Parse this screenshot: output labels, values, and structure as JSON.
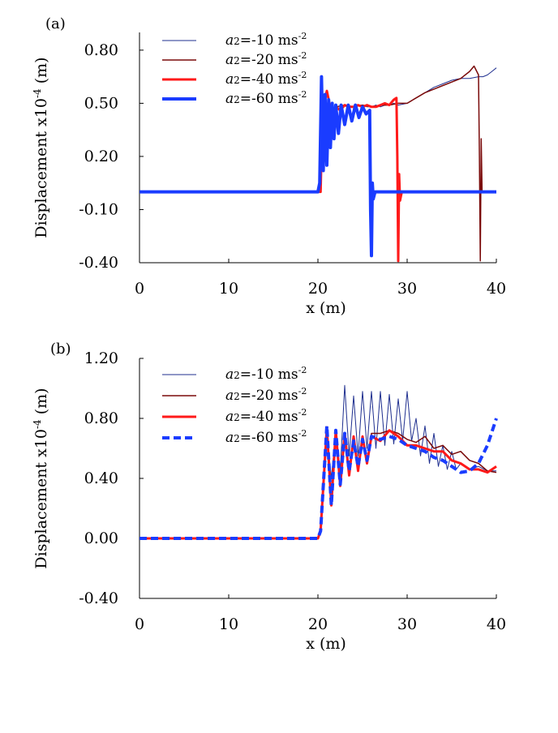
{
  "chart_data": [
    {
      "type": "line",
      "panel_label": "(a)",
      "xlabel": "x (m)",
      "ylabel": "Displacement x10",
      "ylabel_exponent": "-4",
      "ylabel_unit": " (m)",
      "xlim": [
        0,
        40
      ],
      "ylim": [
        -0.4,
        0.9
      ],
      "xticks": [
        0,
        10,
        20,
        30,
        40
      ],
      "xtick_labels": [
        "0",
        "10",
        "20",
        "30",
        "40"
      ],
      "yticks": [
        -0.4,
        -0.1,
        0.2,
        0.5,
        0.8
      ],
      "ytick_labels": [
        "-0.40",
        "-0.10",
        "0.20",
        "0.50",
        "0.80"
      ],
      "grid": false,
      "legend_position": "top-center",
      "series": [
        {
          "legend_var": "a",
          "legend_sub": "2",
          "legend_val": "=-10 ms",
          "legend_exp": "-2",
          "color": "#1f2f8f",
          "width": 1,
          "x": [
            0,
            20.3,
            20.5,
            21.0,
            21.5,
            22,
            22.5,
            23,
            23.5,
            24,
            24.5,
            25,
            25.5,
            26,
            26.5,
            27,
            27.5,
            28,
            28.5,
            29,
            30,
            31,
            32,
            33,
            34,
            35,
            36,
            37,
            38,
            38.5,
            39,
            39.5,
            40
          ],
          "y": [
            0.0,
            0.0,
            0.45,
            0.57,
            0.46,
            0.48,
            0.47,
            0.49,
            0.48,
            0.48,
            0.49,
            0.49,
            0.48,
            0.48,
            0.49,
            0.48,
            0.49,
            0.49,
            0.5,
            0.49,
            0.5,
            0.53,
            0.56,
            0.59,
            0.61,
            0.63,
            0.64,
            0.64,
            0.65,
            0.65,
            0.66,
            0.68,
            0.7
          ]
        },
        {
          "legend_var": "a",
          "legend_sub": "2",
          "legend_val": "=-20 ms",
          "legend_exp": "-2",
          "color": "#7a0a0a",
          "width": 1.5,
          "x": [
            0,
            20.3,
            20.5,
            21.0,
            21.5,
            22,
            23,
            24,
            25,
            26,
            27,
            28,
            29,
            30,
            31,
            32,
            33,
            34,
            35,
            36,
            37,
            37.5,
            38,
            38.1,
            38.2,
            38.3,
            38.4,
            38.5,
            40
          ],
          "y": [
            0.0,
            0.0,
            0.45,
            0.57,
            0.46,
            0.48,
            0.49,
            0.48,
            0.49,
            0.48,
            0.49,
            0.49,
            0.5,
            0.5,
            0.53,
            0.56,
            0.58,
            0.6,
            0.62,
            0.64,
            0.68,
            0.71,
            0.66,
            0.2,
            -0.39,
            0.3,
            0.0,
            0.0,
            0.0
          ]
        },
        {
          "legend_var": "a",
          "legend_sub": "2",
          "legend_val": "=-40 ms",
          "legend_exp": "-2",
          "color": "#ff1a1a",
          "width": 3,
          "x": [
            0,
            20.3,
            20.5,
            21.0,
            21.5,
            22,
            22.5,
            23,
            23.5,
            24,
            24.5,
            25,
            25.5,
            26,
            26.5,
            27,
            27.5,
            28,
            28.5,
            28.8,
            28.9,
            29.0,
            29.1,
            29.2,
            29.4,
            40
          ],
          "y": [
            0.0,
            0.0,
            0.45,
            0.57,
            0.45,
            0.48,
            0.46,
            0.49,
            0.48,
            0.48,
            0.49,
            0.48,
            0.49,
            0.48,
            0.48,
            0.49,
            0.5,
            0.49,
            0.52,
            0.53,
            0.2,
            -0.39,
            0.1,
            -0.05,
            0.0,
            0.0
          ]
        },
        {
          "legend_var": "a",
          "legend_sub": "2",
          "legend_val": "=-60 ms",
          "legend_exp": "-2",
          "color": "#1a3cff",
          "width": 4,
          "x": [
            0,
            20.0,
            20.2,
            20.4,
            20.6,
            20.8,
            21.0,
            21.2,
            21.4,
            21.6,
            21.8,
            22.0,
            22.3,
            22.6,
            23.0,
            23.4,
            23.8,
            24.2,
            24.6,
            25.0,
            25.4,
            25.8,
            25.9,
            26.0,
            26.1,
            26.2,
            26.4,
            40
          ],
          "y": [
            0.0,
            0.0,
            0.05,
            0.65,
            0.12,
            0.55,
            0.15,
            0.52,
            0.25,
            0.5,
            0.3,
            0.49,
            0.33,
            0.49,
            0.38,
            0.49,
            0.4,
            0.49,
            0.42,
            0.48,
            0.44,
            0.46,
            -0.1,
            -0.36,
            0.05,
            -0.04,
            0.0,
            0.0
          ]
        }
      ]
    },
    {
      "type": "line",
      "panel_label": "(b)",
      "xlabel": "x (m)",
      "ylabel": "Displacement x10",
      "ylabel_exponent": "-4",
      "ylabel_unit": " (m)",
      "xlim": [
        0,
        40
      ],
      "ylim": [
        -0.4,
        1.2
      ],
      "xticks": [
        0,
        10,
        20,
        30,
        40
      ],
      "xtick_labels": [
        "0",
        "10",
        "20",
        "30",
        "40"
      ],
      "yticks": [
        -0.4,
        0.0,
        0.4,
        0.8,
        1.2
      ],
      "ytick_labels": [
        "-0.40",
        "0.00",
        "0.40",
        "0.80",
        "1.20"
      ],
      "grid": false,
      "legend_position": "top-center",
      "series": [
        {
          "legend_var": "a",
          "legend_sub": "2",
          "legend_val": "=-10 ms",
          "legend_exp": "-2",
          "color": "#1f2f8f",
          "width": 1,
          "x": [
            0,
            20.0,
            20.3,
            21.0,
            21.5,
            22.0,
            22.5,
            23.0,
            23.5,
            24.0,
            24.5,
            25.0,
            25.5,
            26.0,
            26.5,
            27.0,
            27.5,
            28.0,
            28.5,
            29.0,
            29.5,
            30.0,
            30.5,
            31.0,
            31.5,
            32.0,
            32.5,
            33.0,
            33.5,
            34.0,
            34.5,
            35.0,
            35.5,
            36.0,
            37.0,
            38.0,
            39.0,
            40.0
          ],
          "y": [
            0.0,
            0.0,
            0.05,
            0.72,
            0.4,
            0.72,
            0.45,
            1.02,
            0.55,
            0.95,
            0.55,
            0.98,
            0.6,
            0.98,
            0.6,
            0.98,
            0.62,
            0.96,
            0.63,
            0.93,
            0.65,
            0.98,
            0.65,
            0.8,
            0.55,
            0.75,
            0.5,
            0.7,
            0.48,
            0.62,
            0.46,
            0.58,
            0.46,
            0.5,
            0.46,
            0.48,
            0.45,
            0.45
          ]
        },
        {
          "legend_var": "a",
          "legend_sub": "2",
          "legend_val": "=-20 ms",
          "legend_exp": "-2",
          "color": "#7a0a0a",
          "width": 1.5,
          "x": [
            0,
            20.0,
            20.3,
            21.0,
            21.5,
            22.0,
            22.5,
            23.0,
            23.5,
            24.0,
            24.5,
            25.0,
            25.5,
            26.0,
            27.0,
            28.0,
            29.0,
            30.0,
            31.0,
            32.0,
            33.0,
            34.0,
            35.0,
            36.0,
            37.0,
            38.0,
            39.0,
            40.0
          ],
          "y": [
            0.0,
            0.0,
            0.05,
            0.74,
            0.25,
            0.7,
            0.38,
            0.7,
            0.45,
            0.65,
            0.47,
            0.68,
            0.5,
            0.7,
            0.7,
            0.72,
            0.7,
            0.66,
            0.64,
            0.68,
            0.6,
            0.62,
            0.56,
            0.58,
            0.52,
            0.5,
            0.45,
            0.44
          ]
        },
        {
          "legend_var": "a",
          "legend_sub": "2",
          "legend_val": "=-40 ms",
          "legend_exp": "-2",
          "color": "#ff1a1a",
          "width": 3,
          "x": [
            0,
            20.0,
            20.3,
            21.0,
            21.5,
            22.0,
            22.5,
            23.0,
            23.5,
            24.0,
            24.5,
            25.0,
            25.5,
            26.0,
            27.0,
            28.0,
            29.0,
            30.0,
            31.0,
            32.0,
            33.0,
            34.0,
            35.0,
            36.0,
            37.0,
            38.0,
            39.0,
            40.0
          ],
          "y": [
            0.0,
            0.0,
            0.05,
            0.74,
            0.22,
            0.72,
            0.35,
            0.7,
            0.42,
            0.68,
            0.45,
            0.68,
            0.5,
            0.68,
            0.65,
            0.72,
            0.68,
            0.62,
            0.62,
            0.6,
            0.58,
            0.58,
            0.52,
            0.5,
            0.46,
            0.46,
            0.44,
            0.48
          ]
        },
        {
          "legend_var": "a",
          "legend_sub": "2",
          "legend_val": "=-60 ms",
          "legend_exp": "-2",
          "color": "#1a3cff",
          "width": 4,
          "dash": "9,5",
          "x": [
            0,
            20.0,
            20.3,
            21.0,
            21.5,
            22.0,
            22.5,
            23.0,
            23.5,
            24.0,
            24.5,
            25.0,
            25.5,
            26.0,
            27.0,
            28.0,
            29.0,
            30.0,
            31.0,
            32.0,
            33.0,
            34.0,
            35.0,
            36.0,
            37.0,
            38.0,
            39.0,
            40.0
          ],
          "y": [
            0.0,
            0.0,
            0.05,
            0.75,
            0.22,
            0.72,
            0.36,
            0.7,
            0.45,
            0.65,
            0.48,
            0.66,
            0.52,
            0.68,
            0.66,
            0.68,
            0.66,
            0.62,
            0.6,
            0.58,
            0.54,
            0.52,
            0.48,
            0.44,
            0.45,
            0.5,
            0.62,
            0.8
          ]
        }
      ]
    }
  ]
}
